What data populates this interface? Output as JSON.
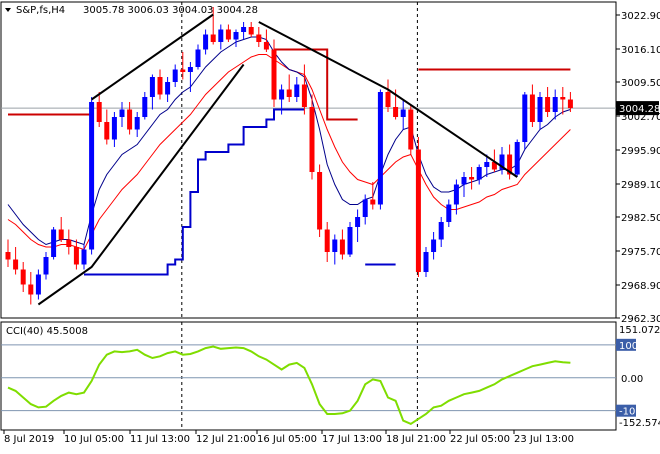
{
  "header": {
    "symbol": "S&P,fs,H4",
    "ohlc": "3005.78 3006.03 3004.03 3004.28"
  },
  "indicator": {
    "name": "CCI(40) 45.5008",
    "max_label": "151.0726",
    "min_label": "-152.5741",
    "level_labels": [
      "100",
      "0.00",
      "-100"
    ]
  },
  "colors": {
    "bull": "#0000ff",
    "bear": "#ff0000",
    "trend": "#000000",
    "cci": "#7fdd00",
    "badge": "#000000"
  },
  "chart_data": {
    "type": "candlestick",
    "instrument": "S&P",
    "timeframe": "H4",
    "current_price": 3004.28,
    "y_ticks": [
      3022.9,
      3016.1,
      3009.5,
      3002.7,
      2995.9,
      2989.1,
      2982.5,
      2975.7,
      2968.9,
      2962.3
    ],
    "ylim": [
      2962.3,
      3025.5
    ],
    "x_labels": [
      "8 Jul 2019",
      "10 Jul 05:00",
      "11 Jul 13:00",
      "12 Jul 21:00",
      "16 Jul 05:00",
      "17 Jul 13:00",
      "18 Jul 21:00",
      "22 Jul 05:00",
      "23 Jul 13:00"
    ],
    "candles": [
      [
        2975.5,
        2978.0,
        2972.5,
        2974.0
      ],
      [
        2974.0,
        2976.5,
        2971.0,
        2972.0
      ],
      [
        2972.0,
        2973.5,
        2967.5,
        2969.0
      ],
      [
        2969.0,
        2971.5,
        2965.0,
        2967.0
      ],
      [
        2967.0,
        2972.0,
        2966.0,
        2971.0
      ],
      [
        2971.0,
        2975.5,
        2970.0,
        2974.5
      ],
      [
        2974.5,
        2980.5,
        2974.0,
        2980.0
      ],
      [
        2980.0,
        2982.5,
        2977.5,
        2978.0
      ],
      [
        2978.0,
        2980.0,
        2975.0,
        2976.5
      ],
      [
        2976.5,
        2978.0,
        2972.0,
        2973.0
      ],
      [
        2973.0,
        2977.0,
        2972.0,
        2976.0
      ],
      [
        2976.0,
        3006.5,
        2975.0,
        3005.5
      ],
      [
        3005.5,
        3007.5,
        3000.5,
        3001.5
      ],
      [
        3001.5,
        3004.0,
        2997.0,
        2998.0
      ],
      [
        2998.0,
        3003.5,
        2996.5,
        3002.5
      ],
      [
        3002.5,
        3005.5,
        3000.5,
        3004.0
      ],
      [
        3004.0,
        3005.5,
        2999.0,
        3000.0
      ],
      [
        3000.0,
        3003.5,
        2998.5,
        3002.5
      ],
      [
        3002.5,
        3007.5,
        3002.0,
        3006.5
      ],
      [
        3006.5,
        3011.0,
        3004.0,
        3010.5
      ],
      [
        3010.5,
        3012.0,
        3006.0,
        3007.0
      ],
      [
        3007.0,
        3010.5,
        3005.5,
        3009.5
      ],
      [
        3009.5,
        3013.0,
        3008.5,
        3012.0
      ],
      [
        3012.0,
        3015.5,
        3010.0,
        3011.5
      ],
      [
        3011.5,
        3013.5,
        3007.5,
        3012.5
      ],
      [
        3012.5,
        3017.0,
        3012.0,
        3016.0
      ],
      [
        3016.0,
        3020.0,
        3015.0,
        3019.0
      ],
      [
        3019.0,
        3024.5,
        3017.0,
        3017.5
      ],
      [
        3017.5,
        3021.0,
        3016.0,
        3020.0
      ],
      [
        3020.0,
        3021.0,
        3017.5,
        3018.0
      ],
      [
        3018.0,
        3020.0,
        3016.5,
        3019.5
      ],
      [
        3019.5,
        3021.5,
        3018.0,
        3020.5
      ],
      [
        3020.5,
        3021.5,
        3018.5,
        3019.0
      ],
      [
        3019.0,
        3020.5,
        3016.5,
        3017.5
      ],
      [
        3017.5,
        3020.0,
        3015.5,
        3016.0
      ],
      [
        3016.0,
        3018.0,
        3004.5,
        3006.0
      ],
      [
        3006.0,
        3009.0,
        3003.0,
        3008.0
      ],
      [
        3008.0,
        3011.0,
        3005.5,
        3006.5
      ],
      [
        3006.5,
        3010.5,
        3005.5,
        3009.0
      ],
      [
        3009.0,
        3013.0,
        3003.0,
        3004.5
      ],
      [
        3004.5,
        3007.0,
        2990.0,
        2991.5
      ],
      [
        2991.5,
        2993.0,
        2978.5,
        2980.0
      ],
      [
        2980.0,
        2981.5,
        2973.5,
        2975.5
      ],
      [
        2975.5,
        2979.0,
        2973.0,
        2978.0
      ],
      [
        2978.0,
        2980.0,
        2974.0,
        2975.0
      ],
      [
        2975.0,
        2981.5,
        2974.5,
        2980.5
      ],
      [
        2980.5,
        2984.0,
        2977.5,
        2982.5
      ],
      [
        2982.5,
        2987.0,
        2981.0,
        2986.0
      ],
      [
        2986.0,
        2989.5,
        2984.0,
        2985.0
      ],
      [
        2985.0,
        3008.0,
        2984.0,
        3007.5
      ],
      [
        3007.5,
        3010.0,
        3003.5,
        3004.5
      ],
      [
        3004.5,
        3008.0,
        3002.0,
        3002.5
      ],
      [
        3002.5,
        3006.0,
        3000.0,
        3004.0
      ],
      [
        3004.0,
        3005.0,
        2995.0,
        2996.0
      ],
      [
        2996.0,
        2998.5,
        2970.5,
        2971.5
      ],
      [
        2971.5,
        2976.5,
        2970.5,
        2975.5
      ],
      [
        2975.5,
        2979.5,
        2974.0,
        2978.0
      ],
      [
        2978.0,
        2982.5,
        2976.5,
        2981.5
      ],
      [
        2981.5,
        2986.0,
        2980.5,
        2985.0
      ],
      [
        2985.0,
        2990.0,
        2983.0,
        2989.0
      ],
      [
        2989.0,
        2991.5,
        2986.5,
        2990.5
      ],
      [
        2990.5,
        2992.5,
        2988.0,
        2990.0
      ],
      [
        2990.0,
        2993.0,
        2989.0,
        2992.5
      ],
      [
        2992.5,
        2995.0,
        2990.5,
        2993.5
      ],
      [
        2993.5,
        2996.0,
        2991.5,
        2992.0
      ],
      [
        2992.0,
        2996.5,
        2991.0,
        2995.0
      ],
      [
        2995.0,
        2997.0,
        2990.0,
        2991.0
      ],
      [
        2991.0,
        2998.0,
        2990.5,
        2997.5
      ],
      [
        2997.5,
        3007.5,
        2996.0,
        3007.0
      ],
      [
        3007.0,
        3009.0,
        3000.5,
        3001.5
      ],
      [
        3001.5,
        3007.5,
        3000.0,
        3006.5
      ],
      [
        3006.5,
        3008.5,
        3002.5,
        3003.5
      ],
      [
        3003.5,
        3008.0,
        3002.0,
        3006.5
      ],
      [
        3006.5,
        3008.5,
        3003.0,
        3006.0
      ],
      [
        3006.0,
        3007.5,
        3003.5,
        3004.28
      ]
    ],
    "fast_ma": [
      2985,
      2983,
      2981,
      2979.5,
      2978,
      2977,
      2977.5,
      2978,
      2978,
      2977.5,
      2977,
      2983,
      2988,
      2991,
      2993,
      2995,
      2996,
      2997,
      2999,
      3001,
      3003,
      3004,
      3006,
      3007.5,
      3008.5,
      3010.5,
      3012.5,
      3014,
      3015.5,
      3016.5,
      3017.5,
      3018,
      3018.5,
      3018.5,
      3018,
      3015.5,
      3013.5,
      3012,
      3011.5,
      3010.5,
      3006,
      3000,
      2993,
      2989,
      2986,
      2985,
      2985,
      2986,
      2986.5,
      2991,
      2995,
      2998,
      3000,
      3000.5,
      2995,
      2991,
      2988.5,
      2987.5,
      2987.5,
      2988,
      2989,
      2989.5,
      2990,
      2991,
      2991.5,
      2992,
      2992,
      2993,
      2996,
      2998,
      3000,
      3001,
      3002.5,
      3003.5,
      3004
    ],
    "slow_ma": [
      2982,
      2981,
      2979.5,
      2978,
      2977,
      2976.5,
      2976.5,
      2977,
      2977,
      2976.5,
      2976,
      2979,
      2982,
      2984,
      2986,
      2988,
      2989.5,
      2991,
      2993,
      2995,
      2997,
      2998.5,
      3000,
      3001.5,
      3003,
      3005,
      3007,
      3008.5,
      3010,
      3011.5,
      3012.5,
      3013.5,
      3014.5,
      3015,
      3015,
      3014,
      3013,
      3012,
      3011.5,
      3011,
      3008,
      3004,
      3000,
      2996.5,
      2993.5,
      2991.5,
      2990,
      2989.5,
      2989,
      2990.5,
      2992,
      2993.5,
      2994.5,
      2995,
      2992,
      2989,
      2986.5,
      2985,
      2984,
      2984,
      2984.5,
      2985,
      2985.5,
      2986.5,
      2987,
      2988,
      2988.5,
      2989,
      2991,
      2992.5,
      2994,
      2995.5,
      2997,
      2998.5,
      3000
    ],
    "step_line_red": [
      [
        [
          0,
          3003.0
        ],
        [
          9,
          3003.0
        ],
        [
          11,
          3002.5
        ]
      ],
      [
        [
          35,
          3016.0
        ],
        [
          40,
          3016.0
        ],
        [
          42,
          3002.0
        ],
        [
          46,
          3002.0
        ]
      ],
      [
        [
          54,
          3012.0
        ],
        [
          74,
          3012.0
        ]
      ]
    ],
    "step_line_blue": [
      [
        [
          10,
          2971.0
        ],
        [
          20,
          2971.0
        ],
        [
          21,
          2973.0
        ],
        [
          22,
          2974.0
        ],
        [
          23,
          2980.5
        ],
        [
          24,
          2987.5
        ],
        [
          25,
          2994.0
        ],
        [
          26,
          2995.5
        ],
        [
          29,
          2997.0
        ],
        [
          31,
          3000.5
        ],
        [
          34,
          3002.0
        ],
        [
          35,
          3004.0
        ],
        [
          39,
          3004.0
        ]
      ],
      [
        [
          47,
          2973.0
        ],
        [
          51,
          2973.0
        ]
      ]
    ],
    "trendlines": [
      [
        [
          4,
          2965.0
        ],
        [
          11,
          2972.5
        ],
        [
          31,
          3013.0
        ]
      ],
      [
        [
          11,
          3006.0
        ],
        [
          27,
          3023.0
        ]
      ],
      [
        [
          33,
          3021.5
        ],
        [
          50,
          3008.0
        ],
        [
          67,
          2990.5
        ]
      ]
    ],
    "cci": [
      -30,
      -40,
      -60,
      -80,
      -90,
      -88,
      -70,
      -55,
      -45,
      -50,
      -45,
      -10,
      40,
      70,
      80,
      78,
      80,
      85,
      70,
      60,
      65,
      75,
      80,
      70,
      72,
      80,
      90,
      95,
      88,
      90,
      92,
      90,
      80,
      65,
      55,
      40,
      25,
      40,
      45,
      30,
      -20,
      -80,
      -110,
      -110,
      -108,
      -100,
      -70,
      -20,
      -5,
      -10,
      -60,
      -70,
      -130,
      -140,
      -125,
      -110,
      -90,
      -85,
      -70,
      -60,
      -50,
      -45,
      -40,
      -30,
      -20,
      -5,
      5,
      15,
      25,
      35,
      40,
      45,
      50,
      47,
      45.5
    ],
    "cci_range": [
      -152.5741,
      151.0726
    ],
    "cci_levels": [
      100,
      0,
      -100
    ],
    "vertical_markers": [
      23,
      54
    ]
  }
}
